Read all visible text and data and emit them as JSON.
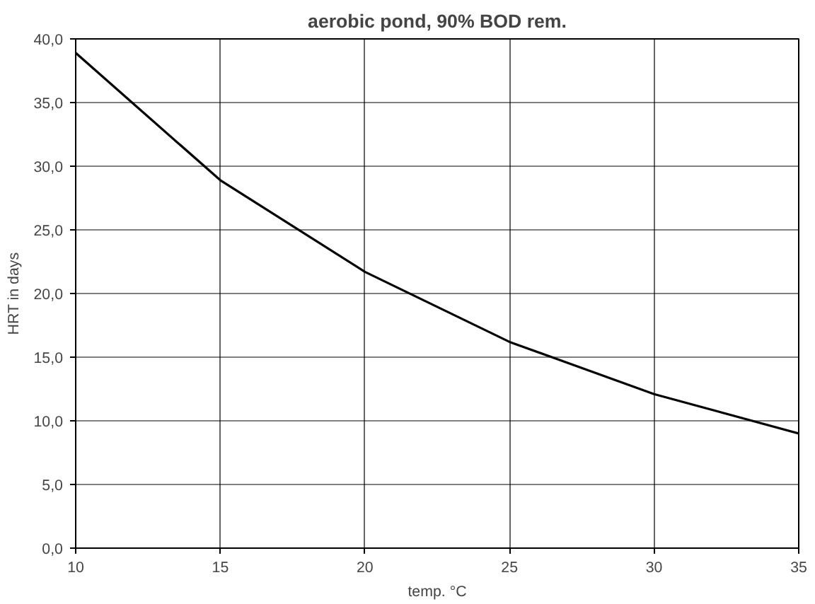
{
  "chart_data": {
    "type": "line",
    "title": "aerobic pond, 90% BOD rem.",
    "xlabel": "temp. °C",
    "ylabel": "HRT in days",
    "x": [
      10,
      15,
      20,
      25,
      30,
      35
    ],
    "series": [
      {
        "color": "#000000",
        "values": [
          38.9,
          28.9,
          21.7,
          16.2,
          12.1,
          9.0
        ]
      }
    ],
    "xlim": [
      10,
      35
    ],
    "xticks": [
      10,
      15,
      20,
      25,
      30,
      35
    ],
    "ylim": [
      0,
      40
    ],
    "yticks": [
      {
        "value": 0,
        "label": "0,0"
      },
      {
        "value": 5,
        "label": "5,0"
      },
      {
        "value": 10,
        "label": "10,0"
      },
      {
        "value": 15,
        "label": "15,0"
      },
      {
        "value": 20,
        "label": "20,0"
      },
      {
        "value": 25,
        "label": "25,0"
      },
      {
        "value": 30,
        "label": "30,0"
      },
      {
        "value": 35,
        "label": "35,0"
      },
      {
        "value": 40,
        "label": "40,0"
      }
    ],
    "grid": true,
    "marker": "none",
    "line_style": "solid"
  }
}
